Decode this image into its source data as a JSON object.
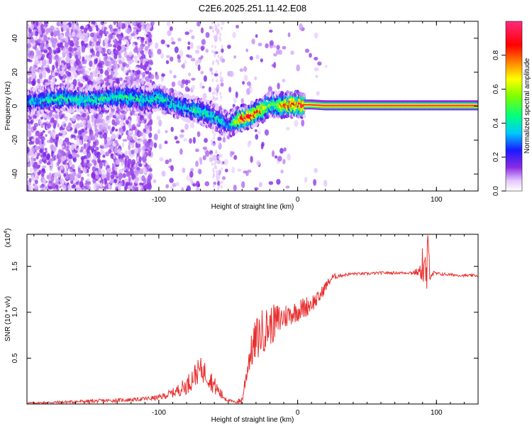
{
  "title": "C2E6.2025.251.11.42.E08",
  "chart_data": [
    {
      "type": "heatmap",
      "xlabel": "Height of straight line (km)",
      "ylabel": "Frequency (Hz)",
      "xlim": [
        -195,
        130
      ],
      "ylim": [
        -50,
        50
      ],
      "xticks": [
        -100,
        0,
        100
      ],
      "yticks": [
        -40,
        -20,
        0,
        20,
        40
      ],
      "colorbar": {
        "label": "Normalized spectral amplitude",
        "range": [
          0,
          1
        ],
        "ticks": [
          "0.0",
          "0.2",
          "0.4",
          "0.6",
          "0.8"
        ]
      },
      "ridge_track": {
        "height_km": [
          -190,
          -170,
          -150,
          -130,
          -110,
          -100,
          -90,
          -80,
          -70,
          -60,
          -50,
          -45,
          -40,
          -35,
          -30,
          -25,
          -20,
          -15,
          -10,
          -5,
          0,
          5,
          10,
          20,
          40,
          60,
          80,
          100,
          130
        ],
        "frequency_hz": [
          3,
          5,
          4,
          6,
          4,
          5,
          2,
          -1,
          -3,
          -6,
          -11,
          -9,
          -7,
          -6,
          -4,
          -2,
          1,
          1,
          1,
          1,
          1,
          1,
          1,
          0.5,
          0.5,
          0.5,
          0.5,
          0.5,
          0.5
        ],
        "amplitude": [
          0.35,
          0.45,
          0.4,
          0.45,
          0.4,
          0.45,
          0.4,
          0.4,
          0.45,
          0.4,
          0.35,
          0.5,
          0.9,
          0.85,
          0.8,
          0.75,
          0.5,
          0.6,
          0.8,
          0.9,
          0.85,
          0.9,
          0.95,
          0.97,
          0.97,
          0.97,
          0.97,
          0.97,
          0.97
        ]
      }
    },
    {
      "type": "line",
      "xlabel": "Height of straight line (km)",
      "ylabel": "SNR (10 * v/v)",
      "y_multiplier": "(x10",
      "y_multiplier_exp": "4",
      "y_multiplier_close": ")",
      "xlim": [
        -195,
        130
      ],
      "ylim": [
        0,
        1.85
      ],
      "xticks": [
        -100,
        0,
        100
      ],
      "yticks": [
        0.5,
        1.0,
        1.5
      ],
      "series": [
        {
          "name": "SNR",
          "color": "#e8302f",
          "x": [
            -195,
            -170,
            -150,
            -130,
            -115,
            -100,
            -90,
            -80,
            -75,
            -70,
            -65,
            -60,
            -55,
            -50,
            -45,
            -40,
            -35,
            -30,
            -25,
            -20,
            -15,
            -10,
            -5,
            0,
            5,
            10,
            15,
            20,
            25,
            30,
            40,
            50,
            60,
            70,
            80,
            88,
            90,
            92,
            94,
            96,
            100,
            110,
            120,
            130
          ],
          "y": [
            0.01,
            0.02,
            0.03,
            0.04,
            0.05,
            0.07,
            0.12,
            0.2,
            0.3,
            0.38,
            0.32,
            0.2,
            0.1,
            0.04,
            0.02,
            0.04,
            0.5,
            0.7,
            0.8,
            0.85,
            0.9,
            0.95,
            0.98,
            1.02,
            1.05,
            1.1,
            1.15,
            1.28,
            1.38,
            1.4,
            1.42,
            1.42,
            1.43,
            1.43,
            1.43,
            1.44,
            1.55,
            1.3,
            1.6,
            1.42,
            1.42,
            1.41,
            1.4,
            1.4
          ],
          "amplitude_noise": [
            0.01,
            0.015,
            0.02,
            0.02,
            0.02,
            0.03,
            0.05,
            0.1,
            0.13,
            0.13,
            0.13,
            0.1,
            0.06,
            0.02,
            0.01,
            0.05,
            0.15,
            0.25,
            0.25,
            0.22,
            0.2,
            0.15,
            0.12,
            0.12,
            0.12,
            0.1,
            0.08,
            0.06,
            0.04,
            0.02,
            0.015,
            0.015,
            0.015,
            0.015,
            0.015,
            0.05,
            0.25,
            0.4,
            0.3,
            0.05,
            0.02,
            0.015,
            0.015,
            0.015
          ]
        }
      ]
    }
  ]
}
